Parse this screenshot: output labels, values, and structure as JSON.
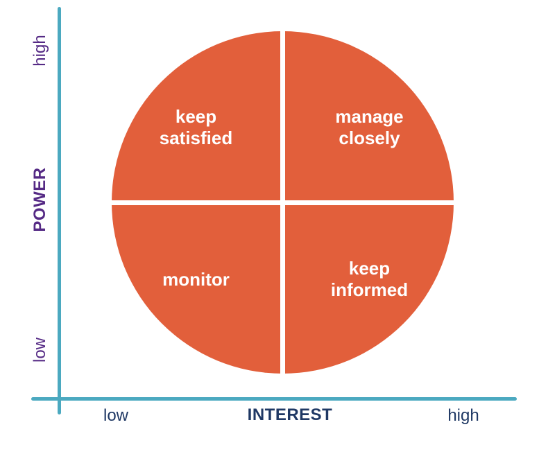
{
  "diagram": {
    "type": "power-interest-grid",
    "colors": {
      "circle_fill": "#E25F3B",
      "axis_line": "#4BA9C0",
      "y_axis_text": "#552A85",
      "x_axis_text": "#1F3864",
      "quadrant_text": "#FFFFFF",
      "background": "#FFFFFF",
      "divider": "#FFFFFF"
    },
    "y_axis": {
      "title": "POWER",
      "top_label": "high",
      "bottom_label": "low"
    },
    "x_axis": {
      "title": "INTEREST",
      "left_label": "low",
      "right_label": "high"
    },
    "quadrants": {
      "top_left": "keep\nsatisfied",
      "top_right": "manage\nclosely",
      "bottom_left": "monitor",
      "bottom_right": "keep\ninformed"
    }
  }
}
